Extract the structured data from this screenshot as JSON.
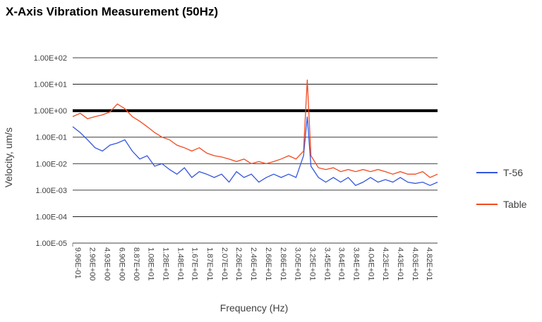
{
  "chart_data": {
    "type": "line",
    "title": "X-Axis Vibration Measurement (50Hz)",
    "xlabel": "Frequency (Hz)",
    "ylabel": "Velocity, um/s",
    "yscale": "log",
    "ylim": [
      1e-05,
      100
    ],
    "xlim": [
      0.996,
      50
    ],
    "yticks": [
      "1.00E-05",
      "1.00E-04",
      "1.00E-03",
      "1.00E-02",
      "1.00E-01",
      "1.00E+00",
      "1.00E+01",
      "1.00E+02"
    ],
    "xticks": [
      {
        "value": 0.996,
        "label": "9.96E-01"
      },
      {
        "value": 2.96,
        "label": "2.96E+00"
      },
      {
        "value": 4.93,
        "label": "4.93E+00"
      },
      {
        "value": 6.9,
        "label": "6.90E+00"
      },
      {
        "value": 8.87,
        "label": "8.87E+00"
      },
      {
        "value": 10.8,
        "label": "1.08E+01"
      },
      {
        "value": 12.8,
        "label": "1.28E+01"
      },
      {
        "value": 14.8,
        "label": "1.48E+01"
      },
      {
        "value": 16.7,
        "label": "1.67E+01"
      },
      {
        "value": 18.7,
        "label": "1.87E+01"
      },
      {
        "value": 20.7,
        "label": "2.07E+01"
      },
      {
        "value": 22.6,
        "label": "2.26E+01"
      },
      {
        "value": 24.6,
        "label": "2.46E+01"
      },
      {
        "value": 26.6,
        "label": "2.66E+01"
      },
      {
        "value": 28.6,
        "label": "2.86E+01"
      },
      {
        "value": 30.5,
        "label": "3.05E+01"
      },
      {
        "value": 32.5,
        "label": "3.25E+01"
      },
      {
        "value": 34.5,
        "label": "3.45E+01"
      },
      {
        "value": 36.4,
        "label": "3.64E+01"
      },
      {
        "value": 38.4,
        "label": "3.84E+01"
      },
      {
        "value": 40.4,
        "label": "4.04E+01"
      },
      {
        "value": 42.3,
        "label": "4.23E+01"
      },
      {
        "value": 44.3,
        "label": "4.43E+01"
      },
      {
        "value": 46.3,
        "label": "4.63E+01"
      },
      {
        "value": 48.2,
        "label": "4.82E+01"
      }
    ],
    "grid": true,
    "legend_position": "right",
    "reference_line": {
      "value": 1.0,
      "color": "#000000"
    },
    "x": [
      1,
      2,
      3,
      4,
      5,
      6,
      7,
      8,
      9,
      10,
      11,
      12,
      13,
      14,
      15,
      16,
      17,
      18,
      19,
      20,
      21,
      22,
      23,
      24,
      25,
      26,
      27,
      28,
      29,
      30,
      31,
      32,
      32.5,
      33,
      34,
      35,
      36,
      37,
      38,
      39,
      40,
      41,
      42,
      43,
      44,
      45,
      46,
      47,
      48,
      49,
      50
    ],
    "series": [
      {
        "name": "T-56",
        "color": "#3355e0",
        "values": [
          0.25,
          0.15,
          0.08,
          0.04,
          0.03,
          0.05,
          0.06,
          0.08,
          0.03,
          0.015,
          0.02,
          0.008,
          0.01,
          0.006,
          0.004,
          0.007,
          0.003,
          0.005,
          0.004,
          0.003,
          0.004,
          0.002,
          0.005,
          0.003,
          0.004,
          0.002,
          0.003,
          0.004,
          0.003,
          0.004,
          0.003,
          0.02,
          0.6,
          0.008,
          0.003,
          0.002,
          0.003,
          0.002,
          0.003,
          0.0015,
          0.002,
          0.003,
          0.002,
          0.0025,
          0.002,
          0.003,
          0.002,
          0.0018,
          0.002,
          0.0015,
          0.002
        ]
      },
      {
        "name": "Table",
        "color": "#f04a20",
        "values": [
          0.6,
          0.8,
          0.5,
          0.6,
          0.7,
          0.9,
          1.8,
          1.2,
          0.6,
          0.4,
          0.25,
          0.15,
          0.1,
          0.08,
          0.05,
          0.04,
          0.03,
          0.04,
          0.025,
          0.02,
          0.018,
          0.015,
          0.012,
          0.015,
          0.01,
          0.012,
          0.01,
          0.012,
          0.015,
          0.02,
          0.015,
          0.03,
          15,
          0.02,
          0.007,
          0.006,
          0.007,
          0.005,
          0.006,
          0.005,
          0.006,
          0.005,
          0.006,
          0.005,
          0.004,
          0.005,
          0.004,
          0.004,
          0.005,
          0.003,
          0.004
        ]
      }
    ]
  }
}
